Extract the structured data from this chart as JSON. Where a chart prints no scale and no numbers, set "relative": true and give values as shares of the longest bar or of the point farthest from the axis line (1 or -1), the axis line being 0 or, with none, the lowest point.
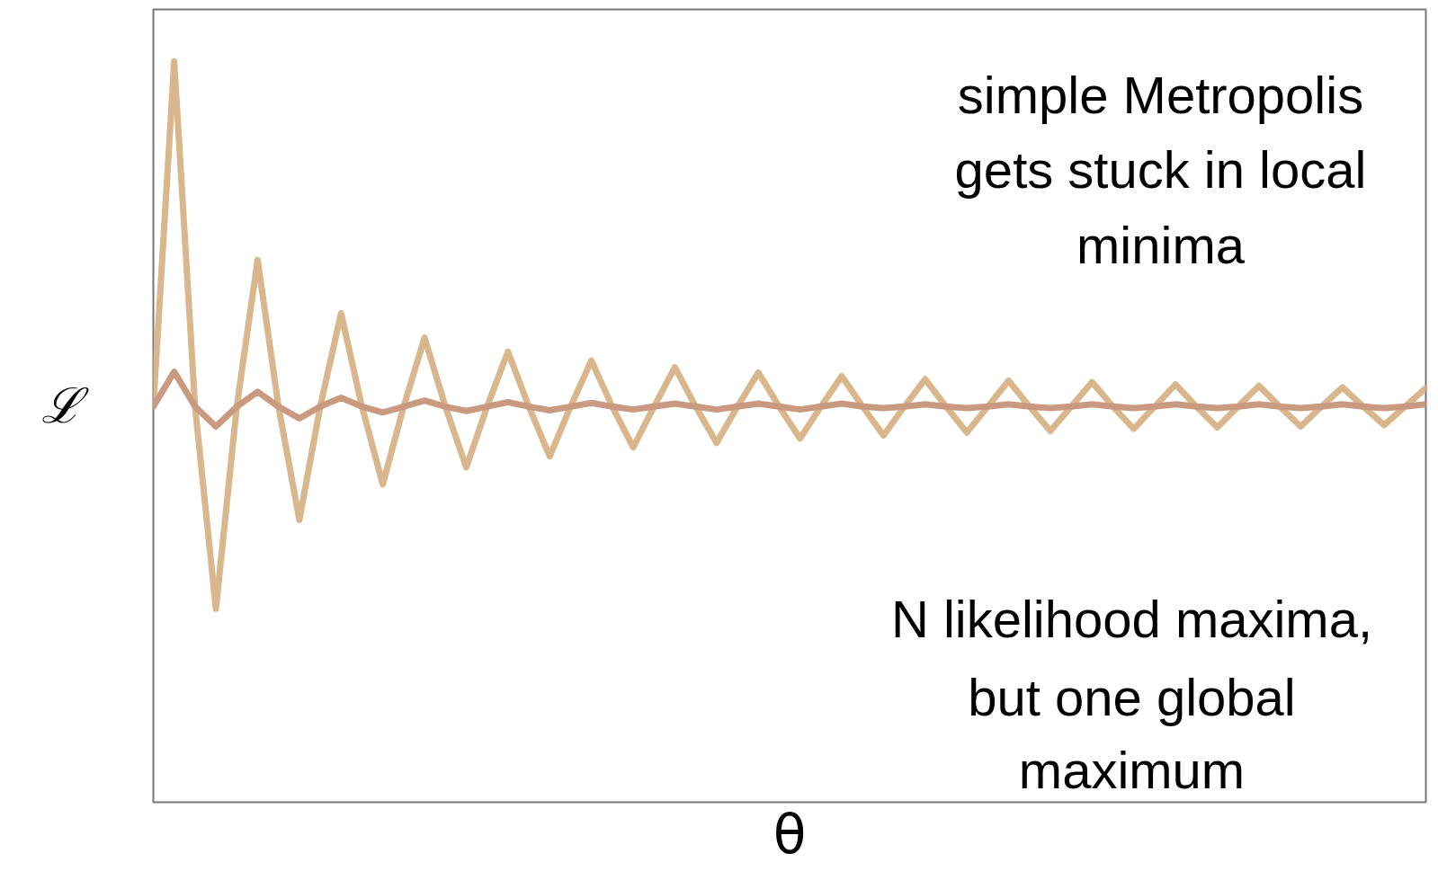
{
  "chart_data": {
    "type": "line",
    "relative": true,
    "xlabel": "θ",
    "ylabel": "ℒ",
    "categories": [
      null,
      null,
      null,
      null,
      null,
      null,
      null,
      null,
      null,
      null,
      null,
      null,
      null,
      null,
      null,
      null,
      null,
      null,
      null,
      null,
      null,
      null,
      null,
      null,
      null,
      null,
      null,
      null,
      null,
      null,
      null,
      null,
      null,
      null,
      null,
      null,
      null,
      null,
      null,
      null,
      null,
      null,
      null,
      null,
      null,
      null,
      null,
      null,
      null,
      null,
      null,
      null,
      null,
      null,
      null,
      null,
      null,
      null,
      null,
      null,
      null,
      null
    ],
    "series": [
      {
        "color": "#d9b68c",
        "values": [
          0.534,
          1.0,
          0.534,
          0.261,
          0.534,
          0.732,
          0.534,
          0.381,
          0.534,
          0.66,
          0.534,
          0.429,
          0.534,
          0.627,
          0.534,
          0.452,
          0.534,
          0.608,
          0.534,
          0.467,
          0.534,
          0.596,
          0.534,
          0.479,
          0.534,
          0.587,
          0.534,
          0.485,
          0.534,
          0.58,
          0.534,
          0.491,
          0.534,
          0.575,
          0.534,
          0.495,
          0.534,
          0.571,
          0.534,
          0.499,
          0.534,
          0.569,
          0.534,
          0.501,
          0.534,
          0.567,
          0.534,
          0.504,
          0.534,
          0.564,
          0.534,
          0.506,
          0.534,
          0.562,
          0.534,
          0.507,
          0.534,
          0.56,
          0.534,
          0.509,
          0.534,
          0.559
        ]
      },
      {
        "color": "#c99a80",
        "values": [
          0.534,
          0.581,
          0.534,
          0.507,
          0.534,
          0.554,
          0.534,
          0.518,
          0.534,
          0.546,
          0.534,
          0.526,
          0.534,
          0.542,
          0.534,
          0.528,
          0.534,
          0.54,
          0.534,
          0.529,
          0.534,
          0.539,
          0.534,
          0.53,
          0.534,
          0.538,
          0.534,
          0.53,
          0.534,
          0.538,
          0.534,
          0.53,
          0.534,
          0.538,
          0.534,
          0.532,
          0.534,
          0.537,
          0.534,
          0.532,
          0.534,
          0.537,
          0.534,
          0.532,
          0.534,
          0.537,
          0.534,
          0.532,
          0.534,
          0.537,
          0.534,
          0.532,
          0.534,
          0.537,
          0.534,
          0.532,
          0.534,
          0.537,
          0.534,
          0.532,
          0.534,
          0.537
        ]
      }
    ],
    "annotations": [
      "simple Metropolis\ngets stuck in local\nminima",
      "N likelihood maxima,\nbut one global\nmaximum"
    ],
    "tick_labels": false,
    "legend": false,
    "line_style": "solid",
    "marker": "none"
  }
}
